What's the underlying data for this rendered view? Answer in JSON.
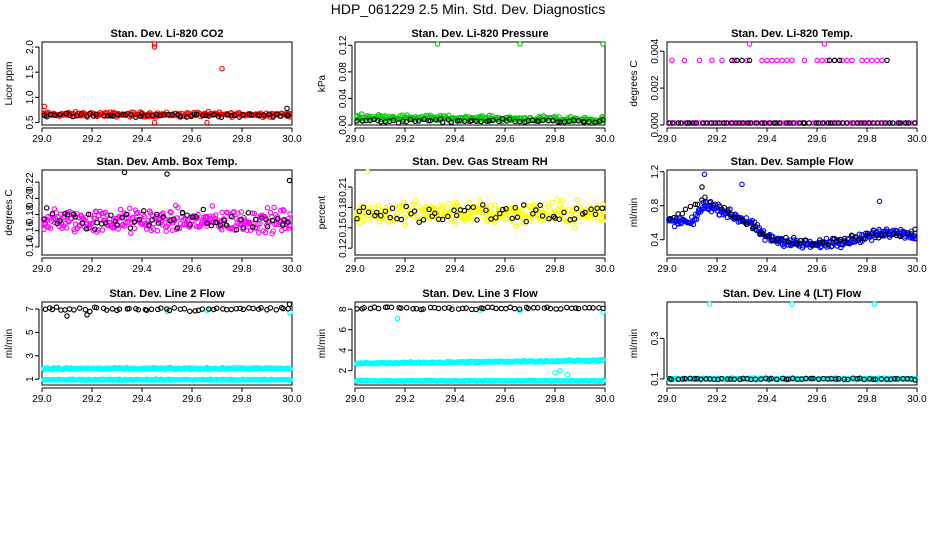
{
  "title": "HDP_061229  2.5 Min. Std. Dev. Diagnostics",
  "colors": {
    "black": "#000000",
    "red": "#ff0000",
    "green": "#00cc00",
    "magenta": "#ff00ff",
    "yellow": "#ffff00",
    "blue": "#0000ff",
    "cyan": "#00ffff"
  },
  "chart_data": [
    {
      "type": "scatter",
      "title": "Stan. Dev. Li-820 CO2",
      "ylabel": "Licor ppm",
      "xlim": [
        29.0,
        30.0
      ],
      "ylim": [
        0.45,
        2.1
      ],
      "xticks": [
        "29.0",
        "29.2",
        "29.4",
        "29.6",
        "29.8",
        "30.0"
      ],
      "yticks": [
        0.5,
        1.0,
        1.5,
        2.0
      ],
      "ytick_labels": [
        "0.5",
        "1.0",
        "1.5",
        "2.0"
      ],
      "series": [
        {
          "name": "red",
          "color": "red",
          "base": 0.66,
          "noise": 0.07,
          "n": 220,
          "points": [
            [
              29.45,
              2.06
            ],
            [
              29.45,
              2.0
            ],
            [
              29.72,
              1.57
            ],
            [
              29.01,
              0.82
            ],
            [
              29.45,
              0.5
            ],
            [
              29.66,
              0.5
            ]
          ]
        },
        {
          "name": "black",
          "color": "black",
          "base": 0.64,
          "noise": 0.06,
          "n": 60,
          "points": [
            [
              29.98,
              0.78
            ]
          ]
        }
      ]
    },
    {
      "type": "scatter",
      "title": "Stan. Dev. Li-820 Pressure",
      "ylabel": "kPa",
      "xlim": [
        29.0,
        30.0
      ],
      "ylim": [
        0.0,
        0.125
      ],
      "xticks": [
        "29.0",
        "29.2",
        "29.4",
        "29.6",
        "29.8",
        "30.0"
      ],
      "yticks": [
        0.0,
        0.04,
        0.08,
        0.12
      ],
      "ytick_labels": [
        "0.00",
        "0.04",
        "0.08",
        "0.12"
      ],
      "series": [
        {
          "name": "green",
          "color": "green",
          "base": 0.012,
          "noise": 0.006,
          "n": 230,
          "trend": -0.004,
          "points": [
            [
              29.33,
              0.122
            ],
            [
              29.66,
              0.122
            ],
            [
              30.0,
              0.122
            ]
          ]
        },
        {
          "name": "black",
          "color": "black",
          "base": 0.006,
          "noise": 0.004,
          "n": 60,
          "points": []
        }
      ]
    },
    {
      "type": "scatter",
      "title": "Stan. Dev. Li-820 Temp.",
      "ylabel": "degrees C",
      "xlim": [
        29.0,
        30.0
      ],
      "ylim": [
        0.0,
        0.0045
      ],
      "xticks": [
        "29.0",
        "29.2",
        "29.4",
        "29.6",
        "29.8",
        "30.0"
      ],
      "yticks": [
        0.0,
        0.002,
        0.004
      ],
      "ytick_labels": [
        "0.000",
        "0.002",
        "0.004"
      ],
      "series": [
        {
          "name": "magenta-zero",
          "color": "magenta",
          "base": 0.0,
          "noise": 0.0,
          "n": 80,
          "points": []
        },
        {
          "name": "magenta-high",
          "color": "magenta",
          "base": 0.0035,
          "noise": 0.0,
          "n": 0,
          "points": [
            [
              29.02,
              0.0035
            ],
            [
              29.07,
              0.0035
            ],
            [
              29.13,
              0.0035
            ],
            [
              29.18,
              0.0035
            ],
            [
              29.22,
              0.0035
            ],
            [
              29.27,
              0.0035
            ],
            [
              29.32,
              0.0035
            ],
            [
              29.38,
              0.0035
            ],
            [
              29.4,
              0.0035
            ],
            [
              29.42,
              0.0035
            ],
            [
              29.44,
              0.0035
            ],
            [
              29.46,
              0.0035
            ],
            [
              29.48,
              0.0035
            ],
            [
              29.5,
              0.0035
            ],
            [
              29.55,
              0.0035
            ],
            [
              29.6,
              0.0035
            ],
            [
              29.62,
              0.0035
            ],
            [
              29.64,
              0.0035
            ],
            [
              29.67,
              0.0035
            ],
            [
              29.7,
              0.0035
            ],
            [
              29.72,
              0.0035
            ],
            [
              29.74,
              0.0035
            ],
            [
              29.78,
              0.0035
            ],
            [
              29.8,
              0.0035
            ],
            [
              29.82,
              0.0035
            ],
            [
              29.84,
              0.0035
            ],
            [
              29.86,
              0.0035
            ],
            [
              29.33,
              0.0044
            ],
            [
              29.63,
              0.0044
            ]
          ]
        },
        {
          "name": "black",
          "color": "black",
          "base": 0.0,
          "noise": 0.0,
          "n": 60,
          "points": [
            [
              29.26,
              0.0035
            ],
            [
              29.28,
              0.0035
            ],
            [
              29.3,
              0.0035
            ],
            [
              29.33,
              0.0035
            ],
            [
              29.65,
              0.0035
            ],
            [
              29.67,
              0.0035
            ],
            [
              29.69,
              0.0035
            ],
            [
              29.88,
              0.0035
            ]
          ]
        }
      ]
    },
    {
      "type": "scatter",
      "title": "Stan. Dev. Amb. Box Temp.",
      "ylabel": "degrees C",
      "xlim": [
        29.0,
        30.0
      ],
      "ylim": [
        0.13,
        0.235
      ],
      "xticks": [
        "29.0",
        "29.2",
        "29.4",
        "29.6",
        "29.8",
        "30.0"
      ],
      "yticks": [
        0.14,
        0.16,
        0.18,
        0.2,
        0.22
      ],
      "ytick_labels": [
        "0.14",
        "0.16",
        "0.18",
        "0.20",
        "0.22"
      ],
      "series": [
        {
          "name": "magenta",
          "color": "magenta",
          "base": 0.172,
          "noise": 0.022,
          "n": 300,
          "points": []
        },
        {
          "name": "black",
          "color": "black",
          "base": 0.174,
          "noise": 0.02,
          "n": 60,
          "points": [
            [
              29.33,
              0.232
            ],
            [
              29.5,
              0.23
            ],
            [
              29.99,
              0.222
            ]
          ]
        }
      ]
    },
    {
      "type": "scatter",
      "title": "Stan. Dev. Gas Stream RH",
      "ylabel": "percent",
      "xlim": [
        29.0,
        30.0
      ],
      "ylim": [
        0.11,
        0.235
      ],
      "xticks": [
        "29.0",
        "29.2",
        "29.4",
        "29.6",
        "29.8",
        "30.0"
      ],
      "yticks": [
        0.12,
        0.15,
        0.18,
        0.21
      ],
      "ytick_labels": [
        "0.12",
        "0.15",
        "0.18",
        "0.21"
      ],
      "series": [
        {
          "name": "yellow",
          "color": "yellow",
          "base": 0.172,
          "noise": 0.025,
          "n": 300,
          "points": [
            [
              29.05,
              0.233
            ]
          ]
        },
        {
          "name": "black",
          "color": "black",
          "base": 0.172,
          "noise": 0.022,
          "n": 60,
          "points": []
        }
      ]
    },
    {
      "type": "scatter",
      "title": "Stan. Dev. Sample Flow",
      "ylabel": "ml/min",
      "xlim": [
        29.0,
        30.0
      ],
      "ylim": [
        0.22,
        1.22
      ],
      "xticks": [
        "29.0",
        "29.2",
        "29.4",
        "29.6",
        "29.8",
        "30.0"
      ],
      "yticks": [
        0.4,
        0.8,
        1.2
      ],
      "ytick_labels": [
        "0.4",
        "0.8",
        "1.2"
      ],
      "series": [
        {
          "name": "blue",
          "color": "blue",
          "base": 0.0,
          "noise": 0.0,
          "n": 300,
          "profile": [
            [
              29.0,
              0.62
            ],
            [
              29.1,
              0.6
            ],
            [
              29.15,
              0.82
            ],
            [
              29.25,
              0.7
            ],
            [
              29.33,
              0.6
            ],
            [
              29.4,
              0.42
            ],
            [
              29.5,
              0.36
            ],
            [
              29.6,
              0.34
            ],
            [
              29.7,
              0.38
            ],
            [
              29.8,
              0.44
            ],
            [
              29.9,
              0.5
            ],
            [
              30.0,
              0.45
            ]
          ],
          "pnoise": 0.08,
          "points": [
            [
              29.15,
              1.17
            ],
            [
              29.3,
              1.05
            ],
            [
              29.85,
              0.85
            ]
          ]
        },
        {
          "name": "black",
          "color": "black",
          "base": 0.0,
          "noise": 0.0,
          "n": 60,
          "profile": [
            [
              29.0,
              0.6
            ],
            [
              29.15,
              0.88
            ],
            [
              29.3,
              0.65
            ],
            [
              29.4,
              0.42
            ],
            [
              29.6,
              0.36
            ],
            [
              29.8,
              0.44
            ],
            [
              30.0,
              0.5
            ]
          ],
          "pnoise": 0.07,
          "points": [
            [
              29.14,
              1.02
            ]
          ]
        }
      ]
    },
    {
      "type": "scatter",
      "title": "Stan. Dev. Line 2 Flow",
      "ylabel": "ml/min",
      "xlim": [
        29.0,
        30.0
      ],
      "ylim": [
        0.5,
        7.6
      ],
      "xticks": [
        "29.0",
        "29.2",
        "29.4",
        "29.6",
        "29.8",
        "30.0"
      ],
      "yticks": [
        1,
        3,
        5,
        7
      ],
      "ytick_labels": [
        "1",
        "3",
        "5",
        "7"
      ],
      "series": [
        {
          "name": "cyan-high",
          "color": "cyan",
          "base": 1.9,
          "noise": 0.12,
          "n": 240,
          "points": []
        },
        {
          "name": "cyan-low",
          "color": "cyan",
          "base": 0.95,
          "noise": 0.07,
          "n": 240,
          "points": [
            [
              29.5,
              6.8
            ],
            [
              29.66,
              6.9
            ],
            [
              30.0,
              6.7
            ]
          ]
        },
        {
          "name": "black",
          "color": "black",
          "base": 7.0,
          "noise": 0.25,
          "n": 55,
          "points": [
            [
              29.1,
              6.4
            ],
            [
              29.18,
              6.5
            ],
            [
              29.99,
              7.4
            ]
          ]
        }
      ]
    },
    {
      "type": "scatter",
      "title": "Stan. Dev. Line 3 Flow",
      "ylabel": "ml/min",
      "xlim": [
        29.0,
        30.0
      ],
      "ylim": [
        0.6,
        8.7
      ],
      "xticks": [
        "29.0",
        "29.2",
        "29.4",
        "29.6",
        "29.8",
        "30.0"
      ],
      "yticks": [
        2,
        4,
        6,
        8
      ],
      "ytick_labels": [
        "2",
        "4",
        "6",
        "8"
      ],
      "series": [
        {
          "name": "cyan-high",
          "color": "cyan",
          "base": 2.7,
          "noise": 0.12,
          "n": 240,
          "trend": 0.3,
          "points": [
            [
              29.8,
              1.8
            ],
            [
              29.82,
              2.0
            ],
            [
              29.85,
              1.6
            ]
          ]
        },
        {
          "name": "cyan-low",
          "color": "cyan",
          "base": 1.0,
          "noise": 0.06,
          "n": 240,
          "points": [
            [
              29.17,
              7.1
            ],
            [
              29.5,
              7.9
            ],
            [
              29.66,
              7.8
            ],
            [
              30.0,
              7.7
            ]
          ]
        },
        {
          "name": "black",
          "color": "black",
          "base": 8.1,
          "noise": 0.18,
          "n": 55,
          "points": []
        }
      ]
    },
    {
      "type": "scatter",
      "title": "Stan. Dev. Line 4 (LT) Flow",
      "ylabel": "ml/min",
      "xlim": [
        29.0,
        30.0
      ],
      "ylim": [
        0.07,
        0.48
      ],
      "xticks": [
        "29.0",
        "29.2",
        "29.4",
        "29.6",
        "29.8",
        "30.0"
      ],
      "yticks": [
        0.1,
        0.3
      ],
      "ytick_labels": [
        "0.1",
        "0.3"
      ],
      "series": [
        {
          "name": "cyan",
          "color": "cyan",
          "base": 0.1,
          "noise": 0.006,
          "n": 240,
          "points": [
            [
              29.17,
              0.47
            ],
            [
              29.5,
              0.48
            ],
            [
              29.83,
              0.48
            ]
          ]
        },
        {
          "name": "black",
          "color": "black",
          "base": 0.1,
          "noise": 0.005,
          "n": 60,
          "points": []
        }
      ]
    }
  ]
}
